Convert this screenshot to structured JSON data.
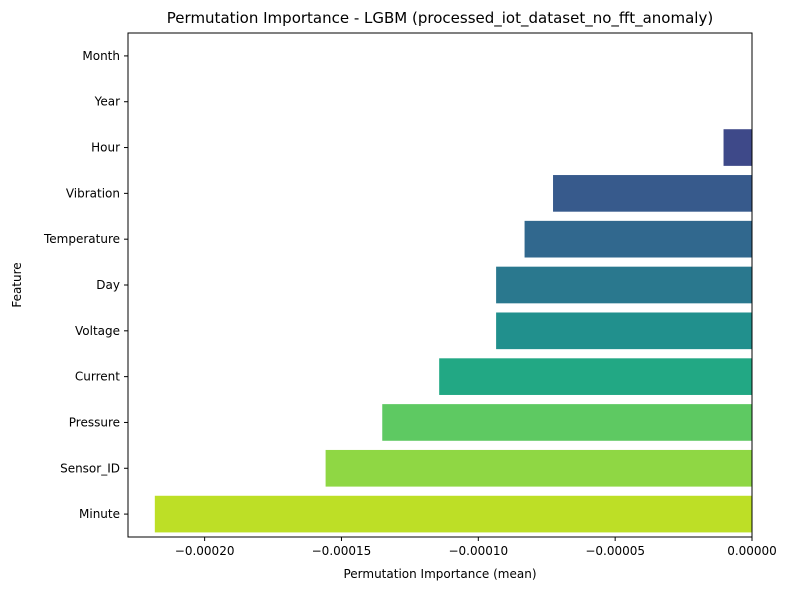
{
  "chart_data": {
    "type": "bar",
    "orientation": "horizontal",
    "title": "Permutation Importance - LGBM (processed_iot_dataset_no_fft_anomaly)",
    "xlabel": "Permutation Importance (mean)",
    "ylabel": "Feature",
    "categories": [
      "Month",
      "Year",
      "Hour",
      "Vibration",
      "Temperature",
      "Day",
      "Voltage",
      "Current",
      "Pressure",
      "Sensor_ID",
      "Minute"
    ],
    "values": [
      0.0,
      0.0,
      -1.04e-05,
      -7.27e-05,
      -8.31e-05,
      -9.35e-05,
      -9.35e-05,
      -0.0001143,
      -0.0001351,
      -0.0001558,
      -0.0002182
    ],
    "colors": [
      "#482878",
      "#443983",
      "#3e4989",
      "#375a8c",
      "#31688e",
      "#2a788e",
      "#21908d",
      "#22a884",
      "#5ec962",
      "#8fd744",
      "#bddf26"
    ],
    "xlim": [
      -0.000228,
      0.0
    ],
    "xticks": [
      -0.0002,
      -0.00015,
      -0.0001,
      -5e-05,
      0.0
    ],
    "xtick_labels": [
      "−0.00020",
      "−0.00015",
      "−0.00010",
      "−0.00005",
      "0.00000"
    ],
    "grid": false,
    "legend": "none"
  }
}
